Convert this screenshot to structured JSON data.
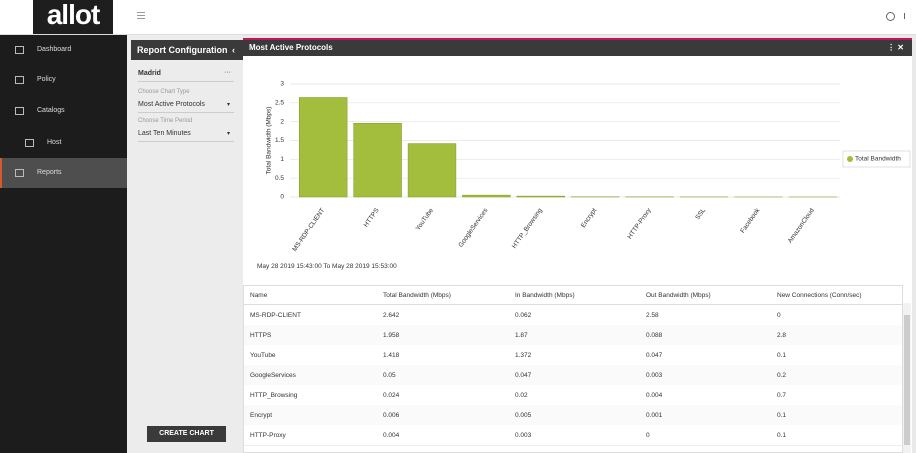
{
  "header": {
    "logo": "allot"
  },
  "sidebar": {
    "items": [
      "Dashboard",
      "Policy",
      "Catalogs",
      "Host",
      "Reports"
    ]
  },
  "config": {
    "title": "Report Configuration",
    "site": "Madrid",
    "chart_type_label": "Choose Chart Type",
    "chart_type": "Most Active Protocols",
    "time_label": "Choose Time Period",
    "time": "Last Ten Minutes",
    "button": "CREATE CHART"
  },
  "panel": {
    "title": "Most Active Protocols",
    "range": "May 28 2019 15:43:00 To May 28 2019 15:53:00"
  },
  "chart_data": {
    "type": "bar",
    "y_label": "Total Bandwidth (Mbps)",
    "categories": [
      "MS-RDP-CLIENT",
      "HTTPS",
      "YouTube",
      "GoogleServices",
      "HTTP_Browsing",
      "Encrypt",
      "HTTP-Proxy",
      "SSL",
      "Facebook",
      "AmazonCloud"
    ],
    "series": [
      {
        "name": "Total Bandwidth",
        "color": "#a3bd3c",
        "values": [
          2.642,
          1.958,
          1.418,
          0.05,
          0.024,
          0.006,
          0.004,
          0.002,
          0.001,
          0.001
        ]
      }
    ],
    "ylim": [
      0,
      3
    ],
    "yticks": [
      0,
      0.5,
      1,
      1.5,
      2,
      2.5,
      3
    ],
    "grid": true,
    "legend": "right"
  },
  "table": {
    "columns": [
      "Name",
      "Total Bandwidth (Mbps)",
      "In Bandwidth (Mbps)",
      "Out Bandwidth (Mbps)",
      "New Connections (Conn/sec)"
    ],
    "rows": [
      [
        "MS-RDP-CLIENT",
        "2.642",
        "0.062",
        "2.58",
        "0"
      ],
      [
        "HTTPS",
        "1.958",
        "1.87",
        "0.088",
        "2.8"
      ],
      [
        "YouTube",
        "1.418",
        "1.372",
        "0.047",
        "0.1"
      ],
      [
        "GoogleServices",
        "0.05",
        "0.047",
        "0.003",
        "0.2"
      ],
      [
        "HTTP_Browsing",
        "0.024",
        "0.02",
        "0.004",
        "0.7"
      ],
      [
        "Encrypt",
        "0.006",
        "0.005",
        "0.001",
        "0.1"
      ],
      [
        "HTTP-Proxy",
        "0.004",
        "0.003",
        "0",
        "0.1"
      ]
    ]
  }
}
